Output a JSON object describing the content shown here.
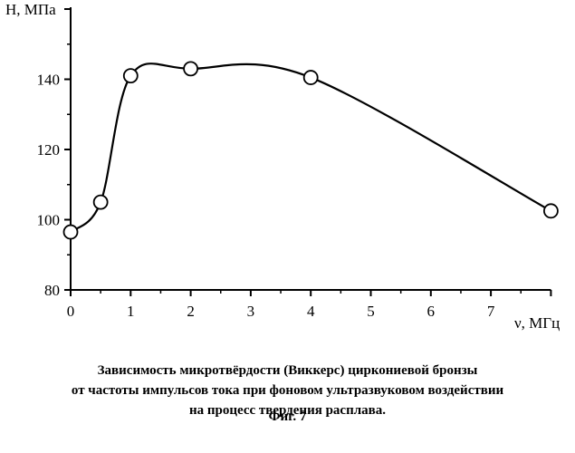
{
  "chart_data": {
    "type": "line",
    "ylabel": "H, МПа",
    "xlabel": "ν, МГц",
    "xlim": [
      0,
      8
    ],
    "ylim": [
      80,
      150
    ],
    "xticks": [
      "0",
      "1",
      "2",
      "3",
      "4",
      "5",
      "6",
      "7"
    ],
    "yticks": [
      "80",
      "100",
      "120",
      "140"
    ],
    "grid": false,
    "legend": "none",
    "series": [
      {
        "marker": "open-circle",
        "smooth": true,
        "x": [
          0,
          0.5,
          1,
          2,
          4,
          8
        ],
        "y": [
          96.5,
          105,
          141,
          143,
          140.5,
          102.5
        ]
      }
    ]
  },
  "caption": {
    "lines": [
      "Зависимость микротвёрдости (Виккерс) циркониевой бронзы",
      "от частоты импульсов тока при фоновом ультразвуковом воздействии",
      "на процесс твердения расплава."
    ],
    "figure": "Фиг. 7"
  }
}
